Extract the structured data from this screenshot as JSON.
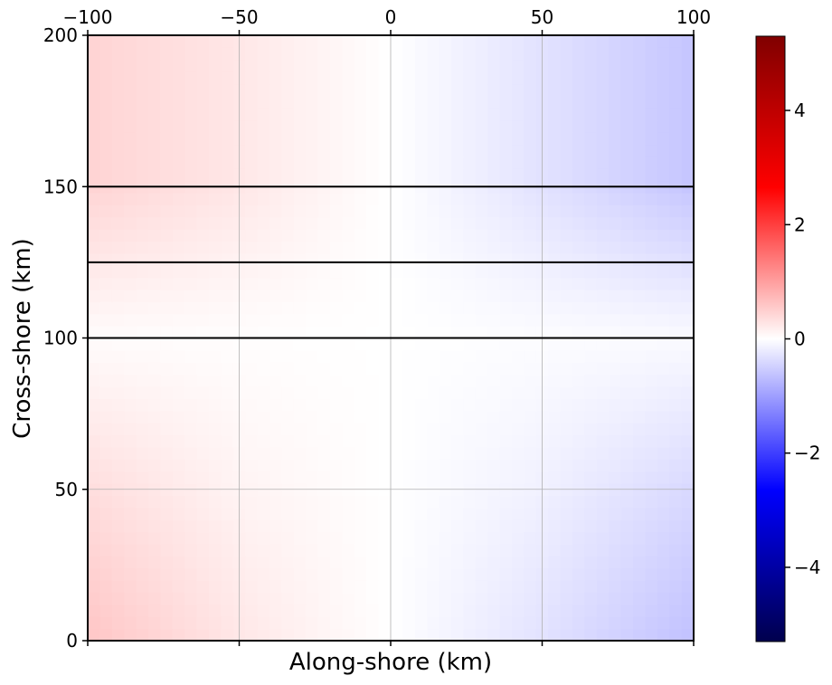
{
  "chart_data": {
    "type": "heatmap",
    "title": "",
    "xlabel": "Along-shore (km)",
    "ylabel": "Cross-shore (km)",
    "xlim": [
      -100,
      100
    ],
    "ylim": [
      0,
      200
    ],
    "x_ticks": [
      -100,
      -50,
      0,
      50,
      100
    ],
    "y_ticks": [
      0,
      50,
      100,
      150,
      200
    ],
    "x_tick_labels": [
      "−100",
      "−50",
      "0",
      "50",
      "100"
    ],
    "y_tick_labels": [
      "0",
      "50",
      "100",
      "150",
      "200"
    ],
    "x_tick_labels_on_top": true,
    "grid": true,
    "horizontal_lines_y": [
      100,
      125,
      150
    ],
    "colormap": "seismic",
    "colormap_stops": [
      "#00004d",
      "#0000ff",
      "#ffffff",
      "#ff0000",
      "#800000"
    ],
    "colorbar": {
      "vmin": -5.3,
      "vmax": 5.3,
      "ticks": [
        -4,
        -2,
        0,
        2,
        4
      ],
      "tick_labels": [
        "−4",
        "−2",
        "0",
        "2",
        "4"
      ]
    },
    "field_samples": {
      "x": [
        -100,
        -50,
        0,
        50,
        100
      ],
      "y": [
        0,
        50,
        100,
        150,
        200
      ],
      "values": [
        [
          0.6,
          0.25,
          0.0,
          -0.3,
          -0.65
        ],
        [
          0.35,
          0.12,
          0.0,
          -0.15,
          -0.4
        ],
        [
          0.04,
          0.02,
          0.0,
          -0.03,
          -0.05
        ],
        [
          0.45,
          0.25,
          0.0,
          -0.3,
          -0.6
        ],
        [
          0.45,
          0.25,
          0.0,
          -0.3,
          -0.6
        ]
      ]
    }
  }
}
